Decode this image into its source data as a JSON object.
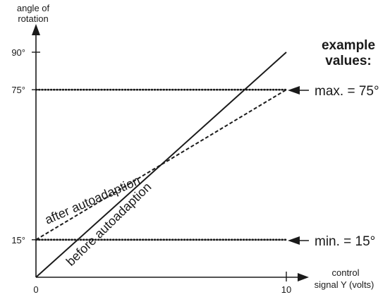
{
  "chart_data": {
    "type": "line",
    "title": "",
    "xlabel": [
      "control",
      "signal Y (volts)"
    ],
    "ylabel": [
      "angle of",
      "rotation"
    ],
    "xlim": [
      0,
      10
    ],
    "ylim": [
      0,
      90
    ],
    "x_ticks": [
      {
        "value": 0,
        "label": "0"
      },
      {
        "value": 10,
        "label": "10"
      }
    ],
    "y_ticks": [
      {
        "value": 15,
        "label": "15°"
      },
      {
        "value": 75,
        "label": "75°"
      },
      {
        "value": 90,
        "label": "90°"
      }
    ],
    "series": [
      {
        "name": "before autoadaption",
        "style": "solid",
        "x": [
          0,
          10
        ],
        "y": [
          0,
          90
        ]
      },
      {
        "name": "after autoadaption",
        "style": "dashed",
        "x": [
          0,
          10
        ],
        "y": [
          15,
          75
        ]
      }
    ],
    "reference_lines": [
      {
        "y": 75,
        "style": "dotted",
        "label": "max. = 75°"
      },
      {
        "y": 15,
        "style": "dotted",
        "label": "min. = 15°"
      }
    ],
    "annotation_title": [
      "example",
      "values:"
    ],
    "grid": false,
    "legend": "none"
  },
  "colors": {
    "ink": "#1a1a1a",
    "background": "#ffffff"
  }
}
